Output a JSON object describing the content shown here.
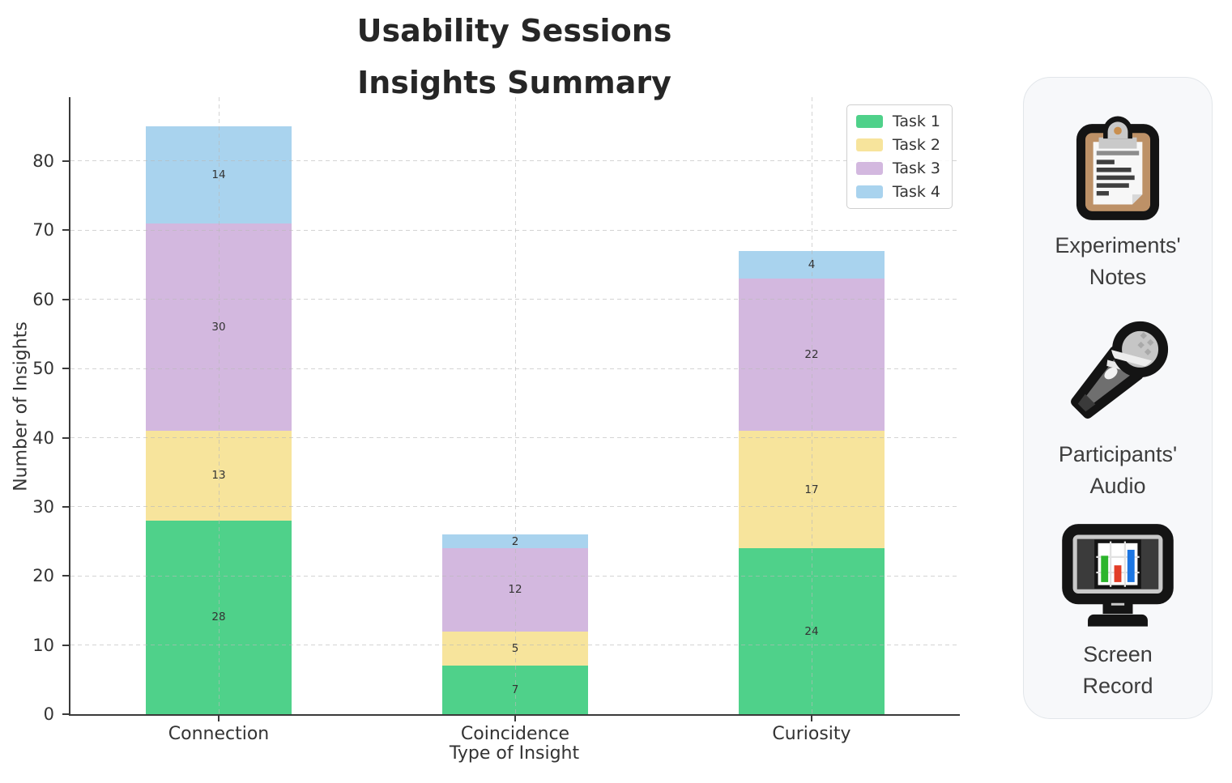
{
  "chart_data": {
    "type": "bar",
    "stacked": true,
    "title": "Usability Sessions Insights Summary",
    "xlabel": "Type of Insight",
    "ylabel": "Number of Insights",
    "categories": [
      "Connection",
      "Coincidence",
      "Curiosity"
    ],
    "series": [
      {
        "name": "Task 1",
        "color": "#4fd18a",
        "values": [
          28,
          7,
          24
        ]
      },
      {
        "name": "Task 2",
        "color": "#f7e49c",
        "values": [
          13,
          5,
          17
        ]
      },
      {
        "name": "Task 3",
        "color": "#d3b8df",
        "values": [
          30,
          12,
          22
        ]
      },
      {
        "name": "Task 4",
        "color": "#a9d3ee",
        "values": [
          14,
          2,
          4
        ]
      }
    ],
    "yticks": [
      0,
      10,
      20,
      30,
      40,
      50,
      60,
      70,
      80
    ],
    "ylim": [
      0,
      89.25
    ],
    "grid": true,
    "grid_style": "dashed",
    "legend_position": "upper right",
    "bar_value_labels": true
  },
  "sidebar": {
    "items": [
      {
        "icon": "clipboard-icon",
        "label": "Experiments'\nNotes"
      },
      {
        "icon": "microphone-icon",
        "label": "Participants'\nAudio"
      },
      {
        "icon": "monitor-chart-icon",
        "label": "Screen\nRecord"
      }
    ]
  }
}
